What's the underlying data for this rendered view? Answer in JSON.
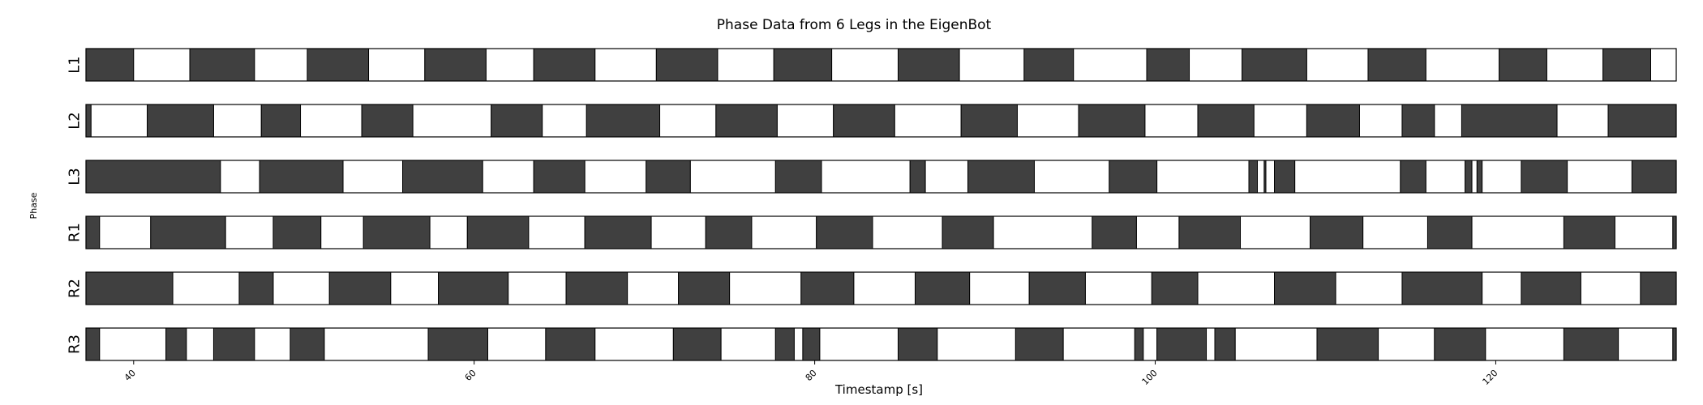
{
  "chart_data": {
    "type": "broken-barh",
    "title": "Phase Data from 6 Legs in the EigenBot",
    "xlabel": "Timestamp [s]",
    "ylabel": "Phase",
    "xlim": [
      37.2,
      130.6
    ],
    "x_ticks": [
      40,
      60,
      80,
      100,
      120
    ],
    "states": {
      "dark": "#404040",
      "light": "#ffffff"
    },
    "rows": [
      {
        "label": "L1",
        "start": "dark",
        "boundaries": [
          37.2,
          40.0,
          43.3,
          47.1,
          50.2,
          53.8,
          57.1,
          60.7,
          63.5,
          67.1,
          70.7,
          74.3,
          77.6,
          81.0,
          84.9,
          88.5,
          92.3,
          95.2,
          99.5,
          102.0,
          105.1,
          108.9,
          112.5,
          115.9,
          120.2,
          123.0,
          126.3,
          129.1,
          130.6
        ]
      },
      {
        "label": "L2",
        "start": "dark",
        "boundaries": [
          37.2,
          37.5,
          40.8,
          44.7,
          47.5,
          49.8,
          53.4,
          56.4,
          61.0,
          64.0,
          66.6,
          70.9,
          74.2,
          77.8,
          81.1,
          84.7,
          88.6,
          91.9,
          95.5,
          99.4,
          102.5,
          105.8,
          108.9,
          112.0,
          114.5,
          116.4,
          118.0,
          123.6,
          126.6,
          131.0,
          130.6
        ]
      },
      {
        "label": "L3",
        "start": "dark",
        "boundaries": [
          37.2,
          45.1,
          47.4,
          52.3,
          55.8,
          60.5,
          63.5,
          66.5,
          70.1,
          72.7,
          77.7,
          80.4,
          85.6,
          86.5,
          89.0,
          92.9,
          97.3,
          100.1,
          105.5,
          106.0,
          106.4,
          106.5,
          107.0,
          108.2,
          114.4,
          115.9,
          118.2,
          118.6,
          118.9,
          119.2,
          121.5,
          124.2,
          128.0,
          131.1,
          130.6
        ]
      },
      {
        "label": "R1",
        "start": "dark",
        "boundaries": [
          37.2,
          38.0,
          41.0,
          45.4,
          48.2,
          51.0,
          53.5,
          57.4,
          59.6,
          63.2,
          66.5,
          70.4,
          73.6,
          76.3,
          80.1,
          83.4,
          87.5,
          90.5,
          96.3,
          98.9,
          101.4,
          105.0,
          109.1,
          112.2,
          116.0,
          118.6,
          124.0,
          127.0,
          130.4,
          130.6
        ]
      },
      {
        "label": "R2",
        "start": "dark",
        "boundaries": [
          37.2,
          42.3,
          46.2,
          48.2,
          51.5,
          55.1,
          57.9,
          62.0,
          65.4,
          69.0,
          72.0,
          75.0,
          79.2,
          82.3,
          85.9,
          89.1,
          92.6,
          95.9,
          99.8,
          102.5,
          107.0,
          110.6,
          114.5,
          119.2,
          121.5,
          125.0,
          128.5,
          131.1,
          130.6
        ]
      },
      {
        "label": "R3",
        "start": "dark",
        "boundaries": [
          37.2,
          38.0,
          41.9,
          43.1,
          44.7,
          47.1,
          49.2,
          51.2,
          57.3,
          60.8,
          64.2,
          67.1,
          71.7,
          74.5,
          77.7,
          78.8,
          79.3,
          80.3,
          84.9,
          87.2,
          91.8,
          94.6,
          98.8,
          99.3,
          100.1,
          103.0,
          103.5,
          104.7,
          109.5,
          113.1,
          116.4,
          119.4,
          124.0,
          127.2,
          130.4,
          130.6
        ]
      }
    ]
  }
}
